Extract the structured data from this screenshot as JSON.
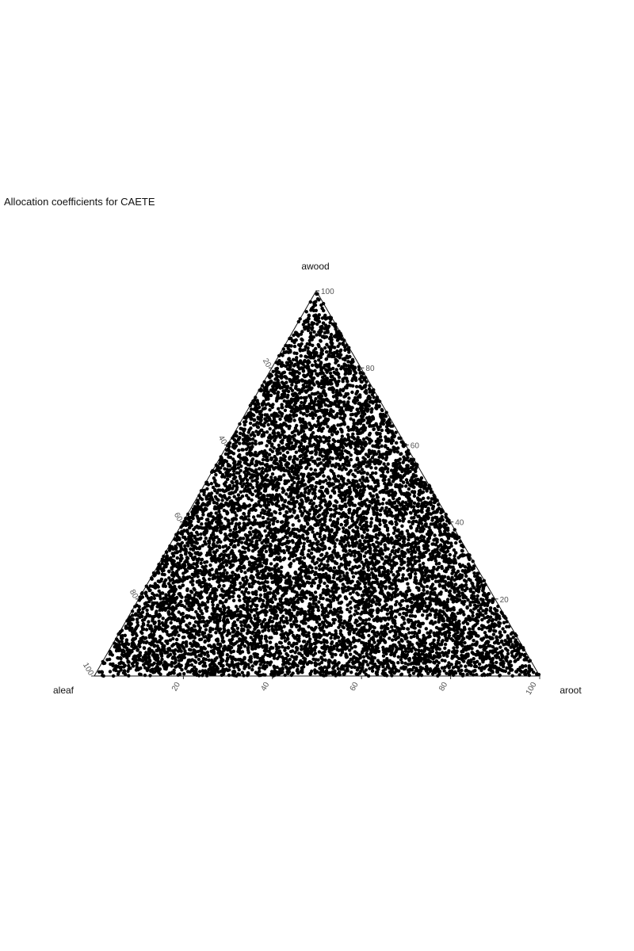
{
  "chart_data": {
    "type": "scatter",
    "subtype": "ternary",
    "title": "Allocation coefficients for CAETE",
    "axes": {
      "top": "awood",
      "left": "aleaf",
      "right": "aroot"
    },
    "ticks": {
      "bottom": [
        "20",
        "40",
        "60",
        "80",
        "100"
      ],
      "right": [
        "20",
        "40",
        "60",
        "80",
        "100"
      ],
      "left": [
        "20",
        "40",
        "60",
        "80",
        "100"
      ]
    },
    "range": [
      0,
      100
    ],
    "grid": false,
    "point_color": "#000000",
    "point_count_estimate": 10000,
    "distribution": "uniform over the simplex (aleaf + aroot + awood = 100)"
  }
}
